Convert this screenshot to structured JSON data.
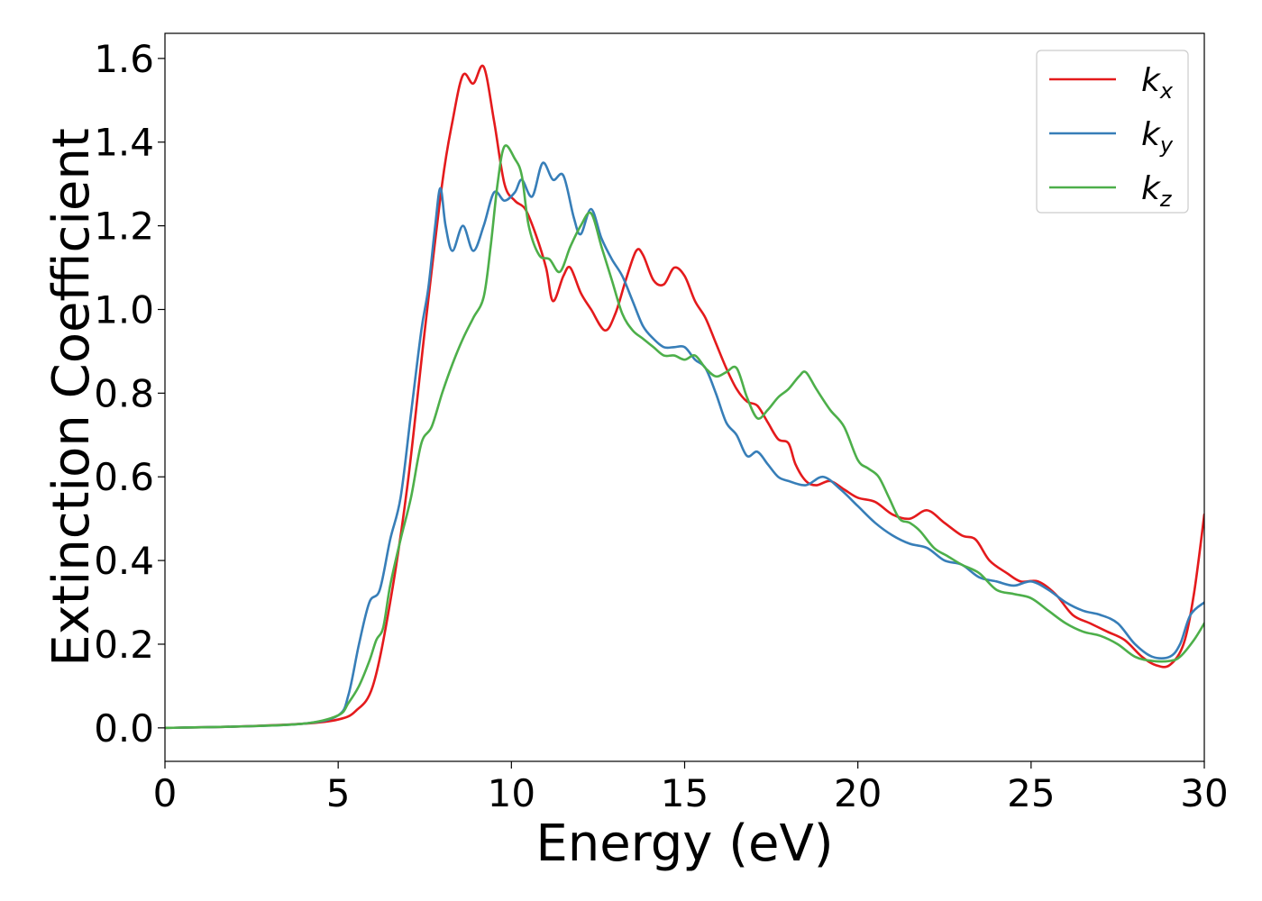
{
  "chart_data": {
    "type": "line",
    "title": "",
    "xlabel": "Energy (eV)",
    "ylabel": "Extinction Coefficient",
    "xlim": [
      0,
      30
    ],
    "ylim": [
      -0.08,
      1.66
    ],
    "xticks": [
      0,
      5,
      10,
      15,
      20,
      25,
      30
    ],
    "xtick_labels": [
      "0",
      "5",
      "10",
      "15",
      "20",
      "25",
      "30"
    ],
    "yticks": [
      0.0,
      0.2,
      0.4,
      0.6,
      0.8,
      1.0,
      1.2,
      1.4,
      1.6
    ],
    "ytick_labels": [
      "0.0",
      "0.2",
      "0.4",
      "0.6",
      "0.8",
      "1.0",
      "1.2",
      "1.4",
      "1.6"
    ],
    "grid": false,
    "legend_position": "top-right",
    "series": [
      {
        "name": "k_x",
        "label_base": "k",
        "label_sub": "x",
        "color": "#e41a1c",
        "points": [
          [
            0,
            0
          ],
          [
            2,
            0.003
          ],
          [
            4,
            0.01
          ],
          [
            5,
            0.02
          ],
          [
            5.5,
            0.04
          ],
          [
            6,
            0.1
          ],
          [
            6.5,
            0.3
          ],
          [
            7,
            0.58
          ],
          [
            7.5,
            0.95
          ],
          [
            8,
            1.3
          ],
          [
            8.3,
            1.45
          ],
          [
            8.6,
            1.56
          ],
          [
            8.9,
            1.54
          ],
          [
            9.2,
            1.58
          ],
          [
            9.5,
            1.45
          ],
          [
            9.8,
            1.3
          ],
          [
            10.1,
            1.26
          ],
          [
            10.4,
            1.24
          ],
          [
            10.7,
            1.18
          ],
          [
            11,
            1.1
          ],
          [
            11.2,
            1.02
          ],
          [
            11.5,
            1.08
          ],
          [
            11.7,
            1.1
          ],
          [
            12,
            1.04
          ],
          [
            12.3,
            1.0
          ],
          [
            12.7,
            0.95
          ],
          [
            13,
            0.99
          ],
          [
            13.3,
            1.07
          ],
          [
            13.6,
            1.14
          ],
          [
            13.8,
            1.13
          ],
          [
            14.1,
            1.07
          ],
          [
            14.4,
            1.06
          ],
          [
            14.7,
            1.1
          ],
          [
            15,
            1.08
          ],
          [
            15.3,
            1.02
          ],
          [
            15.6,
            0.98
          ],
          [
            15.9,
            0.92
          ],
          [
            16.2,
            0.86
          ],
          [
            16.5,
            0.81
          ],
          [
            16.8,
            0.78
          ],
          [
            17.1,
            0.77
          ],
          [
            17.4,
            0.73
          ],
          [
            17.7,
            0.69
          ],
          [
            18,
            0.68
          ],
          [
            18.2,
            0.63
          ],
          [
            18.5,
            0.59
          ],
          [
            18.8,
            0.58
          ],
          [
            19.2,
            0.59
          ],
          [
            19.6,
            0.57
          ],
          [
            20,
            0.55
          ],
          [
            20.5,
            0.54
          ],
          [
            21,
            0.51
          ],
          [
            21.5,
            0.5
          ],
          [
            22,
            0.52
          ],
          [
            22.5,
            0.49
          ],
          [
            23,
            0.46
          ],
          [
            23.4,
            0.45
          ],
          [
            23.8,
            0.4
          ],
          [
            24.3,
            0.37
          ],
          [
            24.7,
            0.35
          ],
          [
            25.2,
            0.35
          ],
          [
            25.7,
            0.32
          ],
          [
            26.2,
            0.27
          ],
          [
            26.7,
            0.25
          ],
          [
            27.2,
            0.23
          ],
          [
            27.7,
            0.21
          ],
          [
            28.2,
            0.17
          ],
          [
            28.6,
            0.15
          ],
          [
            29,
            0.15
          ],
          [
            29.4,
            0.2
          ],
          [
            29.7,
            0.32
          ],
          [
            30,
            0.51
          ]
        ]
      },
      {
        "name": "k_y",
        "label_base": "k",
        "label_sub": "y",
        "color": "#377eb8",
        "points": [
          [
            0,
            0
          ],
          [
            2,
            0.003
          ],
          [
            4,
            0.01
          ],
          [
            5,
            0.03
          ],
          [
            5.3,
            0.08
          ],
          [
            5.6,
            0.2
          ],
          [
            5.9,
            0.3
          ],
          [
            6.2,
            0.33
          ],
          [
            6.5,
            0.45
          ],
          [
            6.8,
            0.55
          ],
          [
            7.1,
            0.75
          ],
          [
            7.4,
            0.95
          ],
          [
            7.6,
            1.05
          ],
          [
            7.8,
            1.2
          ],
          [
            7.95,
            1.29
          ],
          [
            8.1,
            1.2
          ],
          [
            8.3,
            1.14
          ],
          [
            8.6,
            1.2
          ],
          [
            8.9,
            1.14
          ],
          [
            9.2,
            1.2
          ],
          [
            9.5,
            1.28
          ],
          [
            9.8,
            1.26
          ],
          [
            10.1,
            1.28
          ],
          [
            10.3,
            1.31
          ],
          [
            10.6,
            1.27
          ],
          [
            10.9,
            1.35
          ],
          [
            11.2,
            1.31
          ],
          [
            11.5,
            1.32
          ],
          [
            11.8,
            1.22
          ],
          [
            12,
            1.18
          ],
          [
            12.3,
            1.24
          ],
          [
            12.6,
            1.17
          ],
          [
            12.9,
            1.12
          ],
          [
            13.2,
            1.08
          ],
          [
            13.5,
            1.02
          ],
          [
            13.8,
            0.96
          ],
          [
            14.1,
            0.93
          ],
          [
            14.4,
            0.91
          ],
          [
            14.7,
            0.91
          ],
          [
            15,
            0.91
          ],
          [
            15.3,
            0.88
          ],
          [
            15.6,
            0.86
          ],
          [
            15.9,
            0.8
          ],
          [
            16.2,
            0.73
          ],
          [
            16.5,
            0.7
          ],
          [
            16.8,
            0.65
          ],
          [
            17.1,
            0.66
          ],
          [
            17.4,
            0.63
          ],
          [
            17.7,
            0.6
          ],
          [
            18,
            0.59
          ],
          [
            18.5,
            0.58
          ],
          [
            19,
            0.6
          ],
          [
            19.5,
            0.57
          ],
          [
            20,
            0.53
          ],
          [
            20.5,
            0.49
          ],
          [
            21,
            0.46
          ],
          [
            21.5,
            0.44
          ],
          [
            22,
            0.43
          ],
          [
            22.5,
            0.4
          ],
          [
            23,
            0.39
          ],
          [
            23.5,
            0.36
          ],
          [
            24,
            0.35
          ],
          [
            24.5,
            0.34
          ],
          [
            25,
            0.35
          ],
          [
            25.5,
            0.33
          ],
          [
            26,
            0.3
          ],
          [
            26.5,
            0.28
          ],
          [
            27,
            0.27
          ],
          [
            27.5,
            0.25
          ],
          [
            28,
            0.2
          ],
          [
            28.5,
            0.17
          ],
          [
            29,
            0.17
          ],
          [
            29.3,
            0.2
          ],
          [
            29.6,
            0.27
          ],
          [
            30,
            0.3
          ]
        ]
      },
      {
        "name": "k_z",
        "label_base": "k",
        "label_sub": "z",
        "color": "#4daf4a",
        "points": [
          [
            0,
            0
          ],
          [
            2,
            0.003
          ],
          [
            4,
            0.01
          ],
          [
            5,
            0.03
          ],
          [
            5.3,
            0.06
          ],
          [
            5.6,
            0.1
          ],
          [
            5.9,
            0.16
          ],
          [
            6.1,
            0.21
          ],
          [
            6.3,
            0.24
          ],
          [
            6.5,
            0.34
          ],
          [
            6.8,
            0.45
          ],
          [
            7.1,
            0.55
          ],
          [
            7.4,
            0.68
          ],
          [
            7.7,
            0.72
          ],
          [
            8,
            0.8
          ],
          [
            8.3,
            0.87
          ],
          [
            8.6,
            0.93
          ],
          [
            8.9,
            0.98
          ],
          [
            9.2,
            1.03
          ],
          [
            9.4,
            1.15
          ],
          [
            9.6,
            1.3
          ],
          [
            9.8,
            1.39
          ],
          [
            10.1,
            1.36
          ],
          [
            10.3,
            1.32
          ],
          [
            10.5,
            1.2
          ],
          [
            10.8,
            1.13
          ],
          [
            11.1,
            1.12
          ],
          [
            11.4,
            1.09
          ],
          [
            11.7,
            1.15
          ],
          [
            12,
            1.2
          ],
          [
            12.3,
            1.23
          ],
          [
            12.6,
            1.15
          ],
          [
            12.9,
            1.07
          ],
          [
            13.2,
            0.99
          ],
          [
            13.5,
            0.95
          ],
          [
            13.8,
            0.93
          ],
          [
            14.1,
            0.91
          ],
          [
            14.4,
            0.89
          ],
          [
            14.7,
            0.89
          ],
          [
            15,
            0.88
          ],
          [
            15.3,
            0.89
          ],
          [
            15.6,
            0.86
          ],
          [
            15.9,
            0.84
          ],
          [
            16.2,
            0.85
          ],
          [
            16.5,
            0.86
          ],
          [
            16.8,
            0.79
          ],
          [
            17.1,
            0.74
          ],
          [
            17.4,
            0.76
          ],
          [
            17.7,
            0.79
          ],
          [
            18,
            0.81
          ],
          [
            18.3,
            0.84
          ],
          [
            18.5,
            0.85
          ],
          [
            18.8,
            0.81
          ],
          [
            19.2,
            0.76
          ],
          [
            19.6,
            0.72
          ],
          [
            20,
            0.64
          ],
          [
            20.3,
            0.62
          ],
          [
            20.6,
            0.6
          ],
          [
            20.9,
            0.55
          ],
          [
            21.2,
            0.5
          ],
          [
            21.5,
            0.49
          ],
          [
            21.8,
            0.47
          ],
          [
            22.2,
            0.43
          ],
          [
            22.6,
            0.41
          ],
          [
            23,
            0.39
          ],
          [
            23.5,
            0.37
          ],
          [
            24,
            0.33
          ],
          [
            24.5,
            0.32
          ],
          [
            25,
            0.31
          ],
          [
            25.5,
            0.28
          ],
          [
            26,
            0.25
          ],
          [
            26.5,
            0.23
          ],
          [
            27,
            0.22
          ],
          [
            27.5,
            0.2
          ],
          [
            28,
            0.17
          ],
          [
            28.5,
            0.16
          ],
          [
            29,
            0.16
          ],
          [
            29.3,
            0.17
          ],
          [
            29.7,
            0.21
          ],
          [
            30,
            0.25
          ]
        ]
      }
    ]
  }
}
